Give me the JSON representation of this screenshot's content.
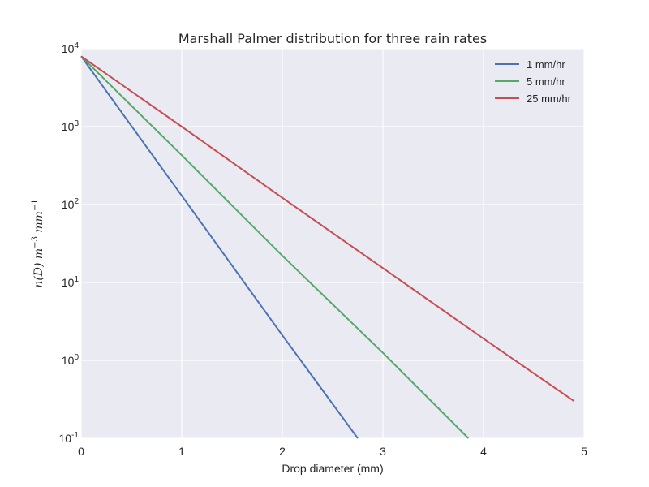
{
  "chart_data": {
    "type": "line",
    "title": "Marshall Palmer distribution for three rain rates",
    "xlabel": "Drop diameter (mm)",
    "ylabel": {
      "base": "n(D) m",
      "exp1": "−3",
      "mid": " mm",
      "exp2": "−1"
    },
    "xlim": [
      0,
      5
    ],
    "ylim": [
      0.1,
      10000
    ],
    "yscale": "log",
    "grid": true,
    "legend_position": "top-right",
    "xticks": [
      {
        "value": 0,
        "label": "0"
      },
      {
        "value": 1,
        "label": "1"
      },
      {
        "value": 2,
        "label": "2"
      },
      {
        "value": 3,
        "label": "3"
      },
      {
        "value": 4,
        "label": "4"
      },
      {
        "value": 5,
        "label": "5"
      }
    ],
    "yticks": [
      {
        "value": 0.1,
        "base": "10",
        "exp": "-1"
      },
      {
        "value": 1,
        "base": "10",
        "exp": "0"
      },
      {
        "value": 10,
        "base": "10",
        "exp": "1"
      },
      {
        "value": 100,
        "base": "10",
        "exp": "2"
      },
      {
        "value": 1000,
        "base": "10",
        "exp": "3"
      },
      {
        "value": 10000,
        "base": "10",
        "exp": "4"
      }
    ],
    "series": [
      {
        "name": "1 mm/hr",
        "color": "#4c72b0",
        "x": [
          0,
          1,
          2,
          2.75
        ],
        "y": [
          8000,
          130,
          2.1,
          0.1
        ]
      },
      {
        "name": "5 mm/hr",
        "color": "#55a868",
        "x": [
          0,
          1,
          2,
          3,
          3.85
        ],
        "y": [
          8000,
          430,
          22,
          1.25,
          0.1
        ]
      },
      {
        "name": "25 mm/hr",
        "color": "#c44e52",
        "x": [
          0,
          1,
          2,
          3,
          4,
          4.9
        ],
        "y": [
          8000,
          1000,
          122,
          15.3,
          1.9,
          0.3
        ]
      }
    ]
  }
}
